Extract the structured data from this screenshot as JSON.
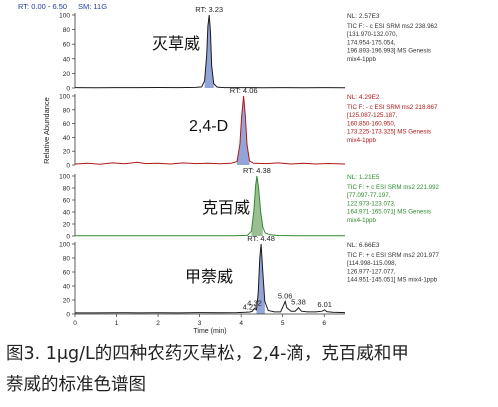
{
  "header": {
    "rt_range": "RT: 0.00 - 6.50",
    "sm": "SM: 11G"
  },
  "chart_data": {
    "type": "line",
    "xlabel": "Time (min)",
    "ylabel": "Relative Abundance",
    "xlim": [
      0,
      6.5
    ],
    "ylim": [
      0,
      100
    ],
    "xticks": [
      0,
      1,
      2,
      3,
      4,
      5,
      6
    ],
    "yticks": [
      0,
      20,
      40,
      60,
      80,
      100
    ],
    "panels": [
      {
        "compound": "灭草威",
        "peak_rt": 3.23,
        "peak_label": "RT: 3.23",
        "color": "#1a1a1a",
        "fill": "#6f86c9",
        "nl": "NL: 2.57E3",
        "info": [
          "TIC F: - c ESI SRM ms2 238.962",
          "[131.970-132.070,",
          "174.954-175.054,",
          "196.893-196.993]  MS  Genesis",
          "mix4-1ppb"
        ],
        "points": [
          [
            0,
            0.5
          ],
          [
            0.5,
            0.4
          ],
          [
            1.0,
            0.6
          ],
          [
            1.5,
            0.5
          ],
          [
            2.0,
            0.7
          ],
          [
            2.5,
            0.5
          ],
          [
            2.9,
            0.8
          ],
          [
            3.05,
            1.5
          ],
          [
            3.12,
            10
          ],
          [
            3.17,
            45
          ],
          [
            3.2,
            85
          ],
          [
            3.23,
            100
          ],
          [
            3.26,
            78
          ],
          [
            3.29,
            30
          ],
          [
            3.34,
            6
          ],
          [
            3.42,
            1.2
          ],
          [
            3.6,
            0.6
          ],
          [
            4.0,
            0.5
          ],
          [
            4.5,
            0.4
          ],
          [
            5.0,
            0.6
          ],
          [
            5.5,
            0.4
          ],
          [
            6.0,
            0.5
          ],
          [
            6.5,
            0.4
          ]
        ]
      },
      {
        "compound": "2,4-D",
        "peak_rt": 4.06,
        "peak_label": "RT: 4.06",
        "color": "#b01818",
        "fill": "#6f86c9",
        "nl": "NL: 4.29E2",
        "info": [
          "TIC F: - c ESI SRM ms2 218.867",
          "[125.087-125.187,",
          "160.850-160.950,",
          "173.225-173.325]  MS  Genesis",
          "mix4-1ppb"
        ],
        "points": [
          [
            0,
            1.5
          ],
          [
            0.3,
            2.5
          ],
          [
            0.6,
            1.2
          ],
          [
            0.9,
            3
          ],
          [
            1.2,
            1.8
          ],
          [
            1.5,
            4
          ],
          [
            1.7,
            2
          ],
          [
            2.0,
            2.5
          ],
          [
            2.3,
            1.5
          ],
          [
            2.6,
            3
          ],
          [
            2.9,
            2
          ],
          [
            3.2,
            2.6
          ],
          [
            3.5,
            1.8
          ],
          [
            3.75,
            2.5
          ],
          [
            3.9,
            5
          ],
          [
            3.97,
            30
          ],
          [
            4.01,
            70
          ],
          [
            4.06,
            100
          ],
          [
            4.1,
            72
          ],
          [
            4.14,
            30
          ],
          [
            4.2,
            6
          ],
          [
            4.3,
            2.5
          ],
          [
            4.6,
            2
          ],
          [
            4.9,
            3
          ],
          [
            5.2,
            1.5
          ],
          [
            5.5,
            2.6
          ],
          [
            5.8,
            1.5
          ],
          [
            6.1,
            2.2
          ],
          [
            6.5,
            1.5
          ]
        ]
      },
      {
        "compound": "克百威",
        "peak_rt": 4.38,
        "peak_label": "RT: 4.38",
        "color": "#2e8a2e",
        "fill": "#7aa86f",
        "nl": "NL: 1.21E5",
        "info": [
          "TIC F: + c ESI SRM ms2 221.992",
          "[77.097-77.197,",
          "122.973-123.073,",
          "164.971-165.071]  MS  Genesis",
          "mix4-1ppb"
        ],
        "points": [
          [
            0,
            0.3
          ],
          [
            1.0,
            0.3
          ],
          [
            2.0,
            0.4
          ],
          [
            3.0,
            0.4
          ],
          [
            3.8,
            0.5
          ],
          [
            4.15,
            1
          ],
          [
            4.25,
            8
          ],
          [
            4.31,
            45
          ],
          [
            4.35,
            85
          ],
          [
            4.38,
            100
          ],
          [
            4.42,
            80
          ],
          [
            4.47,
            40
          ],
          [
            4.52,
            15
          ],
          [
            4.58,
            5
          ],
          [
            4.7,
            2
          ],
          [
            4.9,
            0.8
          ],
          [
            5.3,
            0.5
          ],
          [
            6.0,
            0.4
          ],
          [
            6.5,
            0.3
          ]
        ]
      },
      {
        "compound": "甲萘威",
        "peak_rt": 4.48,
        "peak_label": "RT: 4.48",
        "color": "#1a1a1a",
        "fill": "#6f86c9",
        "nl": "NL: 6.66E3",
        "info": [
          "TIC F: + c ESI SRM ms2 201.977",
          "[114.998-115.098,",
          "126.977-127.077,",
          "144.951-145.051]  MS  mix4-1ppb"
        ],
        "minor_labels": [
          {
            "rt": 4.21,
            "label": "4.21",
            "y": 2
          },
          {
            "rt": 4.32,
            "label": "4.32",
            "y": 8
          },
          {
            "rt": 5.06,
            "label": "5.06",
            "y": 18
          },
          {
            "rt": 5.38,
            "label": "5.38",
            "y": 9
          },
          {
            "rt": 6.01,
            "label": "6.01",
            "y": 6
          }
        ],
        "points": [
          [
            0,
            1.5
          ],
          [
            0.5,
            1.5
          ],
          [
            1.0,
            1.8
          ],
          [
            1.5,
            1.6
          ],
          [
            2.0,
            1.8
          ],
          [
            2.5,
            1.6
          ],
          [
            3.0,
            2
          ],
          [
            3.5,
            1.8
          ],
          [
            3.9,
            2
          ],
          [
            4.1,
            2.5
          ],
          [
            4.21,
            2.8
          ],
          [
            4.27,
            4
          ],
          [
            4.32,
            8
          ],
          [
            4.37,
            6
          ],
          [
            4.41,
            30
          ],
          [
            4.45,
            80
          ],
          [
            4.48,
            100
          ],
          [
            4.52,
            60
          ],
          [
            4.57,
            18
          ],
          [
            4.65,
            5
          ],
          [
            4.8,
            3
          ],
          [
            4.95,
            3
          ],
          [
            5.02,
            12
          ],
          [
            5.06,
            18
          ],
          [
            5.1,
            9
          ],
          [
            5.2,
            4
          ],
          [
            5.3,
            4
          ],
          [
            5.38,
            9
          ],
          [
            5.45,
            4
          ],
          [
            5.6,
            3
          ],
          [
            5.8,
            3
          ],
          [
            5.95,
            4
          ],
          [
            6.01,
            6
          ],
          [
            6.06,
            3.5
          ],
          [
            6.2,
            2.5
          ],
          [
            6.5,
            2
          ]
        ]
      }
    ]
  },
  "caption": {
    "line1": "图3. 1μg/L的四种农药灭草松，2,4-滴，克百威和甲",
    "line2": "萘威的标准色谱图"
  }
}
